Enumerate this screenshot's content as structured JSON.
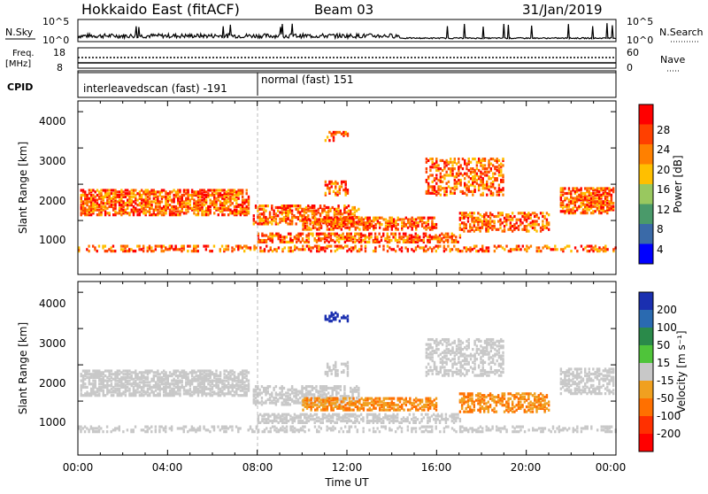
{
  "header": {
    "station": "Hokkaido East (fitACF)",
    "beam": "Beam 03",
    "date": "31/Jan/2019"
  },
  "top_panels": {
    "nsky_label": "N.Sky",
    "nsky_ticks": [
      "10^5",
      "10^0"
    ],
    "nsearch_label": "N.Search",
    "freq_label_1": "Freq.",
    "freq_label_2": "[MHz]",
    "freq_ticks": [
      "18",
      "8"
    ],
    "nave_label": "Nave",
    "nave_ticks": [
      "60",
      "0"
    ],
    "cpid_label": "CPID",
    "cpid_1": "interleavedscan (fast) -191",
    "cpid_2": "normal (fast) 151"
  },
  "chart_data": [
    {
      "type": "heatmap",
      "ylabel": "Slant Range [km]",
      "yticks": [
        "1000",
        "2000",
        "3000",
        "4000"
      ],
      "colorbar_label": "Power [dB]",
      "colorbar_ticks": [
        "28",
        "24",
        "20",
        "16",
        "12",
        "8",
        "4"
      ],
      "colors": [
        "#ff0000",
        "#ff4000",
        "#ff8000",
        "#ffbf00",
        "#99c85f",
        "#4a9a6a",
        "#3a6aa8",
        "#0000ff"
      ]
    },
    {
      "type": "heatmap",
      "ylabel": "Slant Range [km]",
      "yticks": [
        "1000",
        "2000",
        "3000",
        "4000"
      ],
      "colorbar_label": "Velocity [m s⁻¹]",
      "colorbar_ticks": [
        "200",
        "100",
        "50",
        "15",
        "-15",
        "-50",
        "-100",
        "-200"
      ],
      "colors": [
        "#1a2fb0",
        "#2a6ab0",
        "#2a8a4a",
        "#4fc43a",
        "#c8c8c8",
        "#f0a020",
        "#ff7000",
        "#ff3000",
        "#ff0000"
      ]
    }
  ],
  "xaxis": {
    "ticks": [
      "00:00",
      "04:00",
      "08:00",
      "12:00",
      "16:00",
      "20:00",
      "00:00"
    ],
    "label": "Time UT"
  }
}
